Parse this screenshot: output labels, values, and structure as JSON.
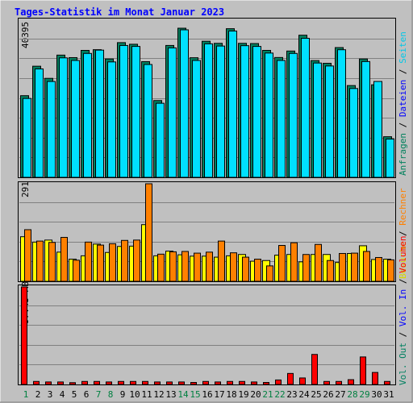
{
  "title": "Tages-Statistik im Monat Januar 2023",
  "y_max_labels": {
    "top": "40395",
    "mid": "291",
    "bottom": "97.45 MB"
  },
  "legend": {
    "top": [
      {
        "text": "Anfragen",
        "color": "#00805c"
      },
      {
        "text": " / ",
        "color": "#000000"
      },
      {
        "text": "Dateien",
        "color": "#0000ff"
      },
      {
        "text": " / ",
        "color": "#000000"
      },
      {
        "text": "Seiten",
        "color": "#00c8e8"
      }
    ],
    "mid": [
      {
        "text": "Besuche",
        "color": "#d8d800"
      },
      {
        "text": " / ",
        "color": "#000000"
      },
      {
        "text": "Rechner",
        "color": "#ff8000"
      }
    ],
    "bottom": [
      {
        "text": "Vol. Out",
        "color": "#008060"
      },
      {
        "text": " / ",
        "color": "#000000"
      },
      {
        "text": "Vol. In",
        "color": "#0000ff"
      },
      {
        "text": " / ",
        "color": "#000000"
      },
      {
        "text": "Volumen",
        "color": "#ff0000"
      }
    ]
  },
  "colors": {
    "background": "#c0c0c0",
    "title": "#0000ff",
    "anfragen": "#008060",
    "dateien": "#0000ff",
    "seiten": "#00e0ff",
    "besuche": "#ffff00",
    "rechner": "#ff8000",
    "volumen": "#ff0000",
    "weekday_label": "#000000",
    "weekend_label": "#008040"
  },
  "chart_data": [
    {
      "type": "bar",
      "ylim": [
        0,
        40395
      ],
      "categories": [
        "1",
        "2",
        "3",
        "4",
        "5",
        "6",
        "7",
        "8",
        "9",
        "10",
        "11",
        "12",
        "13",
        "14",
        "15",
        "16",
        "17",
        "18",
        "19",
        "20",
        "21",
        "22",
        "23",
        "24",
        "25",
        "26",
        "27",
        "28",
        "29",
        "30",
        "31"
      ],
      "weekend_days": [
        "1",
        "7",
        "8",
        "14",
        "15",
        "21",
        "22",
        "28",
        "29"
      ],
      "series": [
        {
          "name": "Anfragen",
          "values": [
            22120,
            30100,
            26810,
            33110,
            32430,
            34390,
            34580,
            32060,
            36490,
            36050,
            31330,
            20800,
            35720,
            40395,
            32400,
            36860,
            36300,
            40260,
            36300,
            36240,
            34390,
            32460,
            34210,
            38500,
            31630,
            30890,
            35150,
            24860,
            32060,
            25070,
            11000
          ]
        },
        {
          "name": "Seiten",
          "values": [
            21800,
            29800,
            26400,
            32800,
            32100,
            34000,
            34900,
            31700,
            36150,
            35900,
            31000,
            20500,
            35500,
            40395,
            32100,
            36600,
            36000,
            40070,
            36100,
            35900,
            34100,
            32100,
            34000,
            38100,
            31400,
            30600,
            35000,
            24500,
            31800,
            26400,
            10800
          ]
        }
      ]
    },
    {
      "type": "bar",
      "ylim": [
        0,
        291
      ],
      "categories": [
        "1",
        "2",
        "3",
        "4",
        "5",
        "6",
        "7",
        "8",
        "9",
        "10",
        "11",
        "12",
        "13",
        "14",
        "15",
        "16",
        "17",
        "18",
        "19",
        "20",
        "21",
        "22",
        "23",
        "24",
        "25",
        "26",
        "27",
        "28",
        "29",
        "30",
        "31"
      ],
      "series": [
        {
          "name": "Besuche",
          "values": [
            133,
            117,
            123,
            87,
            66,
            76,
            111,
            86,
            104,
            105,
            169,
            76,
            90,
            79,
            75,
            75,
            72,
            76,
            80,
            60,
            62,
            78,
            80,
            58,
            80,
            80,
            56,
            83,
            106,
            65,
            66
          ]
        },
        {
          "name": "Rechner",
          "values": [
            154,
            120,
            116,
            131,
            63,
            117,
            108,
            112,
            122,
            123,
            291,
            81,
            88,
            89,
            84,
            87,
            120,
            85,
            72,
            66,
            46,
            107,
            115,
            80,
            110,
            62,
            83,
            84,
            89,
            71,
            64
          ]
        }
      ]
    },
    {
      "type": "bar",
      "ylim": [
        0,
        97.45
      ],
      "ylabel": "MB",
      "categories": [
        "1",
        "2",
        "3",
        "4",
        "5",
        "6",
        "7",
        "8",
        "9",
        "10",
        "11",
        "12",
        "13",
        "14",
        "15",
        "16",
        "17",
        "18",
        "19",
        "20",
        "21",
        "22",
        "23",
        "24",
        "25",
        "26",
        "27",
        "28",
        "29",
        "30",
        "31"
      ],
      "series": [
        {
          "name": "Volumen",
          "values": [
            97.45,
            3,
            2.5,
            2.5,
            1.8,
            3,
            3,
            2.5,
            3,
            3,
            3,
            2.5,
            2.5,
            2.5,
            2,
            3,
            2.5,
            3,
            3,
            2.5,
            2,
            4.5,
            11,
            6.5,
            30,
            3,
            3,
            4.8,
            27.5,
            12,
            3
          ]
        }
      ]
    }
  ]
}
